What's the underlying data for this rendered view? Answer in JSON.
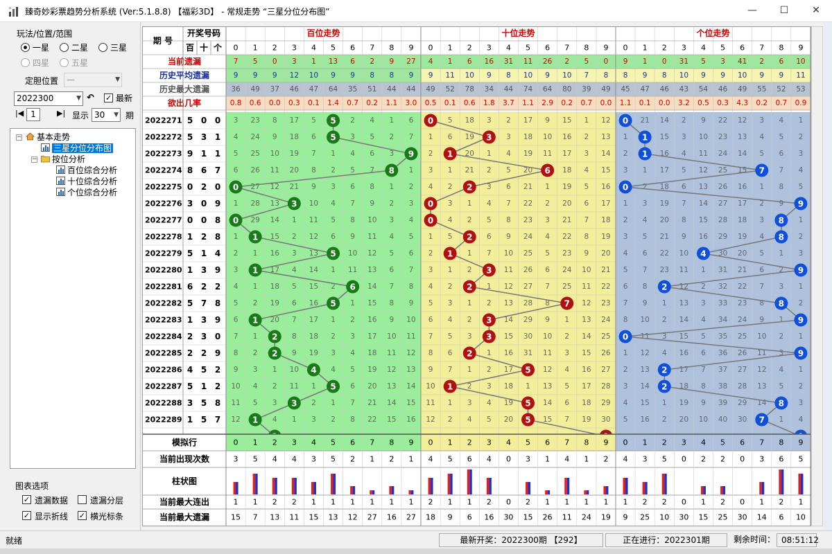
{
  "window": {
    "title": "臻奇妙彩票趋势分析系统 (Ver:5.1.8.8) 【福彩3D】 - 常规走势 “三星分位分布图”",
    "controls": [
      "—",
      "☐",
      "✕"
    ]
  },
  "left_panel": {
    "group_label": "玩法/位置/范围",
    "radios": [
      {
        "label": "一星",
        "checked": true,
        "enabled": true
      },
      {
        "label": "二星",
        "checked": false,
        "enabled": true
      },
      {
        "label": "三星",
        "checked": false,
        "enabled": true
      },
      {
        "label": "四星",
        "checked": false,
        "enabled": false
      },
      {
        "label": "五星",
        "checked": false,
        "enabled": false
      }
    ],
    "dingdan_label": "定胆位置",
    "dingdan_value": "—",
    "issue_value": "2022300",
    "latest_label": "最新",
    "latest_checked": true,
    "page_value": "1",
    "show_label": "显示",
    "show_value": "30",
    "period_label": "期",
    "tree": [
      {
        "label": "基本走势",
        "level": 0,
        "icon": "home"
      },
      {
        "label": "三星分位分布图",
        "level": 1,
        "icon": "chart",
        "selected": true
      },
      {
        "label": "按位分析",
        "level": 1,
        "icon": "folder"
      },
      {
        "label": "百位综合分析",
        "level": 2,
        "icon": "chart"
      },
      {
        "label": "十位综合分析",
        "level": 2,
        "icon": "chart"
      },
      {
        "label": "个位综合分析",
        "level": 2,
        "icon": "chart"
      }
    ],
    "options_title": "图表选项",
    "options": [
      {
        "label": "遗漏数据",
        "checked": true
      },
      {
        "label": "遗漏分层",
        "checked": false
      },
      {
        "label": "显示折线",
        "checked": true
      },
      {
        "label": "横光标条",
        "checked": true
      }
    ]
  },
  "status": {
    "ready": "就绪",
    "latest": "最新开奖：2022300期 【292】",
    "running": "正在进行：2022301期",
    "remaining_label": "剩余时间：",
    "remaining_time": "08:51:12"
  },
  "chart_data": {
    "type": "table",
    "header": {
      "period_label": "期  号",
      "award_label": "开奖号码",
      "position_labels": [
        "百",
        "十",
        "个"
      ],
      "section_titles": [
        "百位走势",
        "十位走势",
        "个位走势"
      ]
    },
    "colors": {
      "bai_bg": "#99ee99",
      "shi_bg": "#f3ee99",
      "ge_bg": "#aec1dd",
      "bai_ball": "#1a7a1a",
      "shi_ball": "#b01010",
      "ge_ball": "#1050d8",
      "stat_red": "#cc0000",
      "stat_blue": "#1a2fa0"
    },
    "stat_rows": [
      {
        "label": "当前遗漏",
        "color": "red",
        "values": [
          "7",
          "5",
          "0",
          "3",
          "1",
          "13",
          "6",
          "2",
          "9",
          "27",
          "4",
          "1",
          "6",
          "16",
          "31",
          "11",
          "26",
          "2",
          "5",
          "0",
          "9",
          "1",
          "0",
          "31",
          "5",
          "3",
          "41",
          "2",
          "6",
          "10"
        ]
      },
      {
        "label": "历史平均遗漏",
        "color": "blue",
        "values": [
          "9",
          "9",
          "9",
          "12",
          "10",
          "9",
          "9",
          "8",
          "8",
          "9",
          "9",
          "11",
          "10",
          "9",
          "8",
          "10",
          "9",
          "10",
          "7",
          "8",
          "8",
          "9",
          "8",
          "10",
          "9",
          "9",
          "10",
          "9",
          "9",
          "11"
        ]
      },
      {
        "label": "历史最大遗漏",
        "color": "gray",
        "values": [
          "36",
          "49",
          "37",
          "46",
          "47",
          "64",
          "35",
          "51",
          "44",
          "44",
          "49",
          "52",
          "78",
          "34",
          "44",
          "74",
          "64",
          "80",
          "39",
          "49",
          "45",
          "47",
          "46",
          "43",
          "54",
          "46",
          "49",
          "55",
          "52",
          "53"
        ]
      },
      {
        "label": "欲出几率",
        "color": "red",
        "values": [
          "0.8",
          "0.6",
          "0.0",
          "0.3",
          "0.1",
          "1.4",
          "0.7",
          "0.2",
          "1.1",
          "3.0",
          "0.5",
          "0.1",
          "0.6",
          "1.8",
          "3.7",
          "1.1",
          "2.9",
          "0.2",
          "0.7",
          "0.0",
          "1.1",
          "0.1",
          "0.0",
          "3.2",
          "0.5",
          "0.3",
          "4.3",
          "0.2",
          "0.7",
          "0.9"
        ]
      }
    ],
    "draws": [
      {
        "issue": "2022271",
        "nums": [
          5,
          0,
          0
        ],
        "bai": [
          3,
          23,
          8,
          17,
          5,
          null,
          2,
          4,
          1,
          6
        ],
        "shi": [
          null,
          5,
          18,
          3,
          2,
          17,
          9,
          15,
          1,
          12
        ],
        "ge": [
          null,
          21,
          14,
          2,
          9,
          22,
          12,
          3,
          4,
          1
        ]
      },
      {
        "issue": "2022272",
        "nums": [
          5,
          3,
          1
        ],
        "bai": [
          4,
          24,
          9,
          18,
          6,
          null,
          3,
          5,
          2,
          7
        ],
        "shi": [
          1,
          6,
          19,
          null,
          3,
          18,
          10,
          16,
          2,
          13
        ],
        "ge": [
          1,
          null,
          15,
          3,
          10,
          23,
          13,
          4,
          5,
          2
        ]
      },
      {
        "issue": "2022273",
        "nums": [
          9,
          1,
          1
        ],
        "bai": [
          5,
          25,
          10,
          19,
          7,
          1,
          4,
          6,
          3,
          null
        ],
        "shi": [
          2,
          null,
          20,
          1,
          4,
          19,
          11,
          17,
          3,
          14
        ],
        "ge": [
          2,
          null,
          16,
          4,
          11,
          24,
          14,
          5,
          6,
          3
        ]
      },
      {
        "issue": "2022274",
        "nums": [
          8,
          6,
          7
        ],
        "bai": [
          6,
          26,
          11,
          20,
          8,
          2,
          5,
          7,
          null,
          1
        ],
        "shi": [
          3,
          1,
          21,
          2,
          5,
          20,
          null,
          18,
          4,
          15
        ],
        "ge": [
          3,
          1,
          17,
          5,
          12,
          25,
          15,
          null,
          7,
          4
        ]
      },
      {
        "issue": "2022275",
        "nums": [
          0,
          2,
          0
        ],
        "bai": [
          null,
          27,
          12,
          21,
          9,
          3,
          6,
          8,
          1,
          2
        ],
        "shi": [
          4,
          2,
          null,
          3,
          6,
          21,
          1,
          19,
          5,
          16
        ],
        "ge": [
          null,
          2,
          18,
          6,
          13,
          26,
          16,
          1,
          8,
          5
        ]
      },
      {
        "issue": "2022276",
        "nums": [
          3,
          0,
          9
        ],
        "bai": [
          1,
          28,
          13,
          null,
          10,
          4,
          7,
          9,
          2,
          3
        ],
        "shi": [
          null,
          3,
          1,
          4,
          7,
          22,
          2,
          20,
          6,
          17
        ],
        "ge": [
          1,
          3,
          19,
          7,
          14,
          27,
          17,
          2,
          9,
          null
        ]
      },
      {
        "issue": "2022277",
        "nums": [
          0,
          0,
          8
        ],
        "bai": [
          null,
          29,
          14,
          1,
          11,
          5,
          8,
          10,
          3,
          4
        ],
        "shi": [
          null,
          4,
          2,
          5,
          8,
          23,
          3,
          21,
          7,
          18
        ],
        "ge": [
          2,
          4,
          20,
          8,
          15,
          28,
          18,
          3,
          null,
          1
        ]
      },
      {
        "issue": "2022278",
        "nums": [
          1,
          2,
          8
        ],
        "bai": [
          1,
          null,
          15,
          2,
          12,
          6,
          9,
          11,
          4,
          5
        ],
        "shi": [
          1,
          5,
          null,
          6,
          9,
          24,
          4,
          22,
          8,
          19
        ],
        "ge": [
          3,
          5,
          21,
          9,
          16,
          29,
          19,
          4,
          null,
          2
        ]
      },
      {
        "issue": "2022279",
        "nums": [
          5,
          1,
          4
        ],
        "bai": [
          2,
          1,
          16,
          3,
          13,
          null,
          10,
          12,
          5,
          6
        ],
        "shi": [
          2,
          null,
          1,
          7,
          10,
          25,
          5,
          23,
          9,
          20
        ],
        "ge": [
          4,
          6,
          22,
          10,
          null,
          30,
          20,
          5,
          1,
          3
        ]
      },
      {
        "issue": "2022280",
        "nums": [
          1,
          3,
          9
        ],
        "bai": [
          3,
          null,
          17,
          4,
          14,
          1,
          11,
          13,
          6,
          7
        ],
        "shi": [
          3,
          1,
          2,
          null,
          11,
          26,
          6,
          24,
          10,
          21
        ],
        "ge": [
          5,
          7,
          23,
          11,
          1,
          31,
          21,
          6,
          2,
          null
        ]
      },
      {
        "issue": "2022281",
        "nums": [
          6,
          2,
          2
        ],
        "bai": [
          4,
          1,
          18,
          5,
          15,
          2,
          null,
          14,
          7,
          8
        ],
        "shi": [
          4,
          2,
          null,
          1,
          12,
          27,
          7,
          25,
          11,
          22
        ],
        "ge": [
          6,
          8,
          null,
          12,
          2,
          32,
          22,
          7,
          3,
          1
        ]
      },
      {
        "issue": "2022282",
        "nums": [
          5,
          7,
          8
        ],
        "bai": [
          5,
          2,
          19,
          6,
          16,
          null,
          1,
          15,
          8,
          9
        ],
        "shi": [
          5,
          3,
          1,
          2,
          13,
          28,
          8,
          null,
          12,
          23
        ],
        "ge": [
          7,
          9,
          1,
          13,
          3,
          33,
          23,
          8,
          null,
          2
        ]
      },
      {
        "issue": "2022283",
        "nums": [
          1,
          3,
          9
        ],
        "bai": [
          6,
          null,
          20,
          7,
          17,
          1,
          2,
          16,
          9,
          10
        ],
        "shi": [
          6,
          4,
          2,
          null,
          14,
          29,
          9,
          1,
          13,
          24
        ],
        "ge": [
          8,
          10,
          2,
          14,
          4,
          34,
          24,
          9,
          1,
          null
        ]
      },
      {
        "issue": "2022284",
        "nums": [
          2,
          3,
          0
        ],
        "bai": [
          7,
          1,
          null,
          8,
          18,
          2,
          3,
          17,
          10,
          11
        ],
        "shi": [
          7,
          5,
          3,
          null,
          15,
          30,
          10,
          2,
          14,
          25
        ],
        "ge": [
          null,
          11,
          3,
          15,
          5,
          35,
          25,
          10,
          2,
          1
        ]
      },
      {
        "issue": "2022285",
        "nums": [
          2,
          2,
          9
        ],
        "bai": [
          8,
          2,
          null,
          9,
          19,
          3,
          4,
          18,
          11,
          12
        ],
        "shi": [
          8,
          6,
          null,
          1,
          16,
          31,
          11,
          3,
          15,
          26
        ],
        "ge": [
          1,
          12,
          4,
          16,
          6,
          36,
          26,
          11,
          3,
          null
        ]
      },
      {
        "issue": "2022286",
        "nums": [
          4,
          5,
          2
        ],
        "bai": [
          9,
          3,
          1,
          10,
          null,
          4,
          5,
          19,
          12,
          13
        ],
        "shi": [
          9,
          7,
          1,
          2,
          17,
          null,
          12,
          4,
          16,
          27
        ],
        "ge": [
          2,
          13,
          null,
          17,
          7,
          37,
          27,
          12,
          4,
          1
        ]
      },
      {
        "issue": "2022287",
        "nums": [
          5,
          1,
          2
        ],
        "bai": [
          10,
          4,
          2,
          11,
          1,
          null,
          6,
          20,
          13,
          14
        ],
        "shi": [
          10,
          null,
          2,
          3,
          18,
          1,
          13,
          5,
          17,
          28
        ],
        "ge": [
          3,
          14,
          null,
          18,
          8,
          38,
          28,
          13,
          5,
          2
        ]
      },
      {
        "issue": "2022288",
        "nums": [
          3,
          5,
          8
        ],
        "bai": [
          11,
          5,
          3,
          null,
          2,
          1,
          7,
          21,
          14,
          15
        ],
        "shi": [
          11,
          1,
          3,
          4,
          19,
          null,
          14,
          6,
          18,
          29
        ],
        "ge": [
          4,
          15,
          1,
          19,
          9,
          39,
          29,
          14,
          null,
          3
        ]
      },
      {
        "issue": "2022289",
        "nums": [
          1,
          5,
          7
        ],
        "bai": [
          12,
          null,
          4,
          1,
          3,
          2,
          8,
          22,
          15,
          16
        ],
        "shi": [
          12,
          2,
          4,
          5,
          20,
          null,
          15,
          7,
          19,
          30
        ],
        "ge": [
          5,
          16,
          2,
          20,
          10,
          40,
          30,
          null,
          1,
          4
        ]
      }
    ],
    "partial_row": {
      "ball_columns": {
        "bai": 2,
        "shi": 9,
        "ge": 9
      }
    },
    "digit_labels": [
      "0",
      "1",
      "2",
      "3",
      "4",
      "5",
      "6",
      "7",
      "8",
      "9"
    ],
    "footer": {
      "simulate_label": "模拟行",
      "count_label": "当前出现次数",
      "bar_label": "柱状图",
      "maxrun_label": "当前最大连出",
      "maxmiss_label": "当前最大遗漏",
      "counts": [
        3,
        5,
        4,
        4,
        3,
        5,
        2,
        1,
        2,
        1,
        4,
        5,
        6,
        4,
        0,
        3,
        1,
        4,
        1,
        2,
        4,
        3,
        5,
        0,
        2,
        2,
        0,
        3,
        6,
        5
      ],
      "max_run": [
        1,
        1,
        2,
        2,
        1,
        1,
        1,
        1,
        1,
        1,
        2,
        1,
        1,
        2,
        0,
        2,
        1,
        1,
        1,
        1,
        1,
        2,
        2,
        0,
        1,
        2,
        0,
        1,
        2,
        1
      ],
      "max_miss": [
        15,
        7,
        13,
        11,
        15,
        13,
        12,
        27,
        16,
        27,
        18,
        9,
        6,
        16,
        30,
        15,
        26,
        11,
        24,
        19,
        9,
        25,
        10,
        30,
        15,
        25,
        30,
        14,
        6,
        10
      ]
    }
  }
}
